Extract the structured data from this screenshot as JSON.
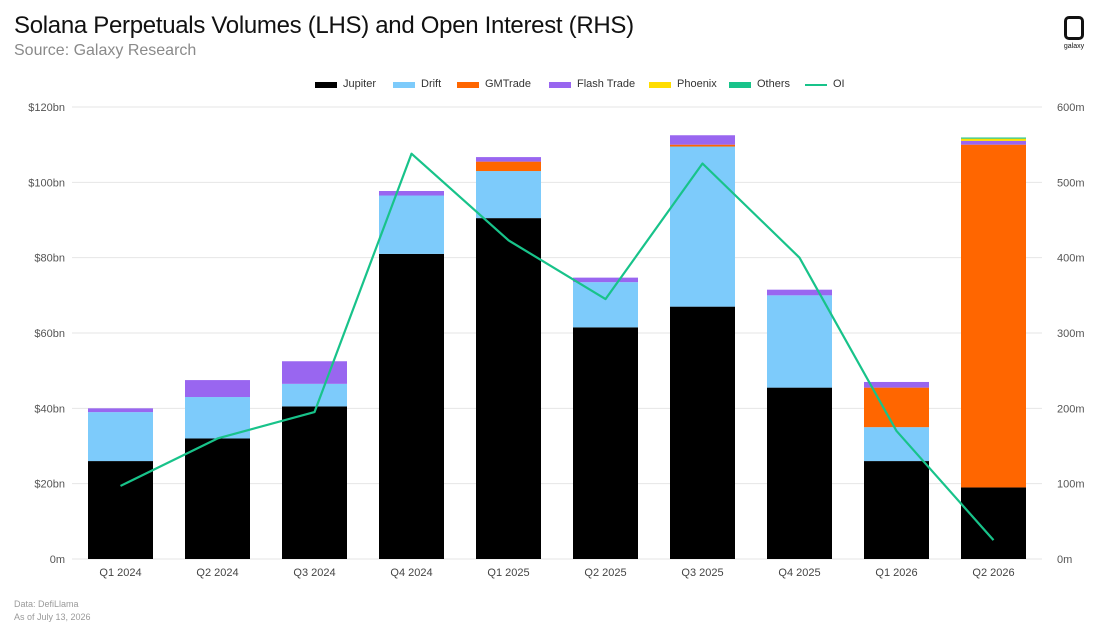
{
  "header": {
    "title": "Solana Perpetuals Volumes (LHS) and Open Interest (RHS)",
    "subtitle": "Source: Galaxy Research",
    "logo_text": "galaxy"
  },
  "footer": {
    "data_source": "Data: DefiLlama",
    "as_of": "As of July 13, 2026"
  },
  "chart_data": {
    "type": "bar",
    "stacked": true,
    "categories": [
      "Q1 2024",
      "Q2 2024",
      "Q3 2024",
      "Q4 2024",
      "Q1 2025",
      "Q2 2025",
      "Q3 2025",
      "Q4 2025",
      "Q1 2026",
      "Q2 2026"
    ],
    "series": [
      {
        "name": "Jupiter",
        "color": "#000000",
        "axis": "left",
        "values": [
          26,
          32,
          40.5,
          81,
          90.5,
          61.5,
          67,
          45.5,
          26,
          19
        ]
      },
      {
        "name": "Drift",
        "color": "#7dcbfb",
        "axis": "left",
        "values": [
          13,
          11,
          6,
          15.5,
          12.5,
          12,
          42.5,
          24.5,
          9,
          0
        ]
      },
      {
        "name": "GMTrade",
        "color": "#ff6600",
        "axis": "left",
        "values": [
          0,
          0,
          0,
          0,
          2.5,
          0,
          0.5,
          0,
          10.5,
          91
        ]
      },
      {
        "name": "Flash Trade",
        "color": "#9966f0",
        "axis": "left",
        "values": [
          1,
          4.5,
          6,
          1.2,
          1.2,
          1.2,
          2.5,
          1.5,
          1.5,
          1
        ]
      },
      {
        "name": "Phoenix",
        "color": "#ffdd00",
        "axis": "left",
        "values": [
          0,
          0,
          0,
          0,
          0,
          0,
          0,
          0,
          0,
          0.6
        ]
      },
      {
        "name": "Others",
        "color": "#18c38a",
        "axis": "left",
        "values": [
          0,
          0,
          0,
          0,
          0,
          0,
          0,
          0,
          0,
          0.3
        ]
      },
      {
        "name": "OI",
        "color": "#18c38a",
        "axis": "right",
        "line": true,
        "values": [
          97,
          160,
          195,
          538,
          423,
          345,
          525,
          400,
          170,
          25
        ]
      }
    ],
    "y_left": {
      "min": 0,
      "max": 120,
      "ticks": [
        "0m",
        "$20bn",
        "$40bn",
        "$60bn",
        "$80bn",
        "$100bn",
        "$120bn"
      ]
    },
    "y_right": {
      "min": 0,
      "max": 600,
      "ticks": [
        "0m",
        "100m",
        "200m",
        "300m",
        "400m",
        "500m",
        "600m"
      ]
    },
    "grid": "horizontal",
    "legend_position": "top-center"
  }
}
